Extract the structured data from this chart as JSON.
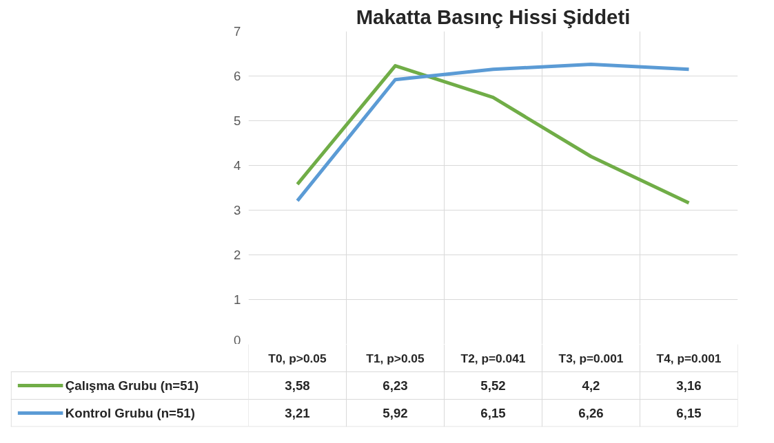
{
  "chart_data": {
    "type": "line",
    "title": "Makatta Basınç Hissi Şiddeti",
    "categories": [
      "T0, p>0.05",
      "T1, p>0.05",
      "T2, p=0.041",
      "T3, p=0.001",
      "T4, p=0.001"
    ],
    "series": [
      {
        "name": "Çalışma Grubu (n=51)",
        "color": "#70ad47",
        "values": [
          3.58,
          6.23,
          5.52,
          4.2,
          3.16
        ],
        "value_labels": [
          "3,58",
          "6,23",
          "5,52",
          "4,2",
          "3,16"
        ]
      },
      {
        "name": "Kontrol Grubu (n=51)",
        "color": "#5b9bd5",
        "values": [
          3.21,
          5.92,
          6.15,
          6.26,
          6.15
        ],
        "value_labels": [
          "3,21",
          "5,92",
          "6,15",
          "6,26",
          "6,15"
        ]
      }
    ],
    "ylim": [
      0,
      7
    ],
    "yticks": [
      0,
      1,
      2,
      3,
      4,
      5,
      6,
      7
    ],
    "grid": true,
    "legend": "bottom left",
    "marker": "none",
    "line_style": "solid"
  }
}
